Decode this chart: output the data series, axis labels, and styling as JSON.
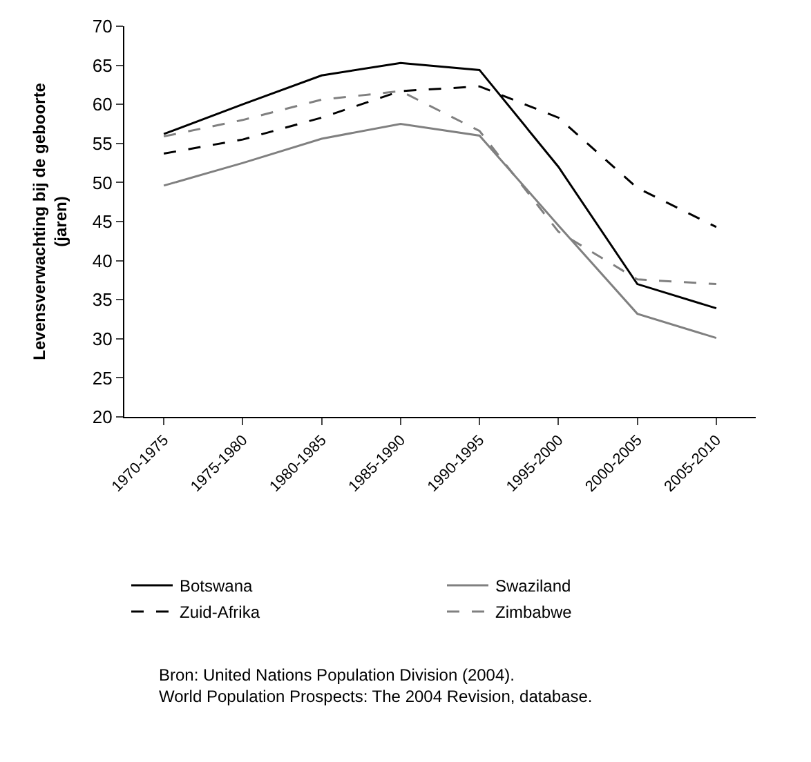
{
  "chart_data": {
    "type": "line",
    "ylabel": "Levensverwachting bij de geboorte\n(jaren)",
    "categories": [
      "1970-1975",
      "1975-1980",
      "1980-1985",
      "1985-1990",
      "1990-1995",
      "1995-2000",
      "2000-2005",
      "2005-2010"
    ],
    "series": [
      {
        "name": "Botswana",
        "color": "#000000",
        "line_style": "solid",
        "values": [
          56.2,
          60.0,
          63.7,
          65.3,
          64.4,
          52.0,
          37.0,
          33.9
        ]
      },
      {
        "name": "Swaziland",
        "color": "#808080",
        "line_style": "solid",
        "values": [
          49.6,
          52.5,
          55.6,
          57.5,
          56.0,
          44.5,
          33.2,
          30.1
        ]
      },
      {
        "name": "Zuid-Afrika",
        "color": "#000000",
        "line_style": "dashed",
        "values": [
          53.7,
          55.5,
          58.3,
          61.7,
          62.3,
          58.3,
          49.3,
          44.3
        ]
      },
      {
        "name": "Zimbabwe",
        "color": "#808080",
        "line_style": "dashed",
        "values": [
          55.9,
          58.0,
          60.6,
          61.7,
          56.6,
          43.7,
          37.6,
          37.0
        ]
      }
    ],
    "ylim": [
      20,
      70
    ],
    "yticks": [
      20,
      25,
      30,
      35,
      40,
      45,
      50,
      55,
      60,
      65,
      70
    ],
    "legend": "bottom",
    "marker": "none",
    "annotations": [
      "Bron: United Nations Population Division (2004).\nWorld Population Prospects: The 2004 Revision, database."
    ]
  }
}
